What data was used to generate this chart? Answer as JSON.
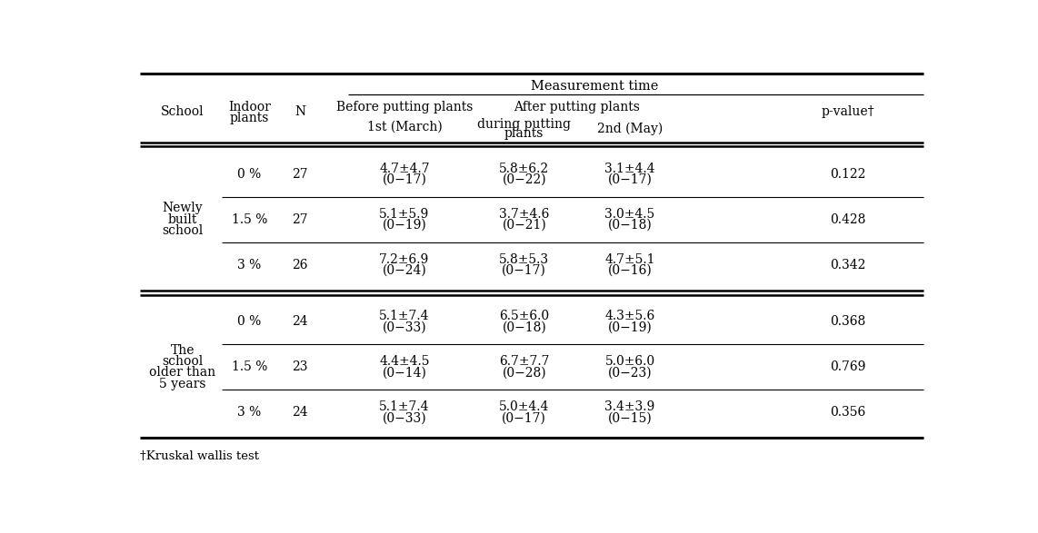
{
  "title": "Measurement time",
  "footnote": "†Kruskal wallis test",
  "bg_color": "#ffffff",
  "text_color": "#000000",
  "font_size": 10,
  "font_family": "DejaVu Serif",
  "school_groups": [
    {
      "school_lines": [
        "Newly",
        "built",
        "school"
      ],
      "rows": [
        {
          "plants": "0 %",
          "n": "27",
          "before": [
            "4.7±4.7",
            "(0−17)"
          ],
          "during": [
            "5.8±6.2",
            "(0−22)"
          ],
          "after": [
            "3.1±4.4",
            "(0−17)"
          ],
          "pvalue": "0.122"
        },
        {
          "plants": "1.5 %",
          "n": "27",
          "before": [
            "5.1±5.9",
            "(0−19)"
          ],
          "during": [
            "3.7±4.6",
            "(0−21)"
          ],
          "after": [
            "3.0±4.5",
            "(0−18)"
          ],
          "pvalue": "0.428"
        },
        {
          "plants": "3 %",
          "n": "26",
          "before": [
            "7.2±6.9",
            "(0−24)"
          ],
          "during": [
            "5.8±5.3",
            "(0−17)"
          ],
          "after": [
            "4.7±5.1",
            "(0−16)"
          ],
          "pvalue": "0.342"
        }
      ]
    },
    {
      "school_lines": [
        "The",
        "school",
        "older than",
        "5 years"
      ],
      "rows": [
        {
          "plants": "0 %",
          "n": "24",
          "before": [
            "5.1±7.4",
            "(0−33)"
          ],
          "during": [
            "6.5±6.0",
            "(0−18)"
          ],
          "after": [
            "4.3±5.6",
            "(0−19)"
          ],
          "pvalue": "0.368"
        },
        {
          "plants": "1.5 %",
          "n": "23",
          "before": [
            "4.4±4.5",
            "(0−14)"
          ],
          "during": [
            "6.7±7.7",
            "(0−28)"
          ],
          "after": [
            "5.0±6.0",
            "(0−23)"
          ],
          "pvalue": "0.769"
        },
        {
          "plants": "3 %",
          "n": "24",
          "before": [
            "5.1±7.4",
            "(0−33)"
          ],
          "during": [
            "5.0±4.4",
            "(0−17)"
          ],
          "after": [
            "3.4±3.9",
            "(0−15)"
          ],
          "pvalue": "0.356"
        }
      ]
    }
  ]
}
